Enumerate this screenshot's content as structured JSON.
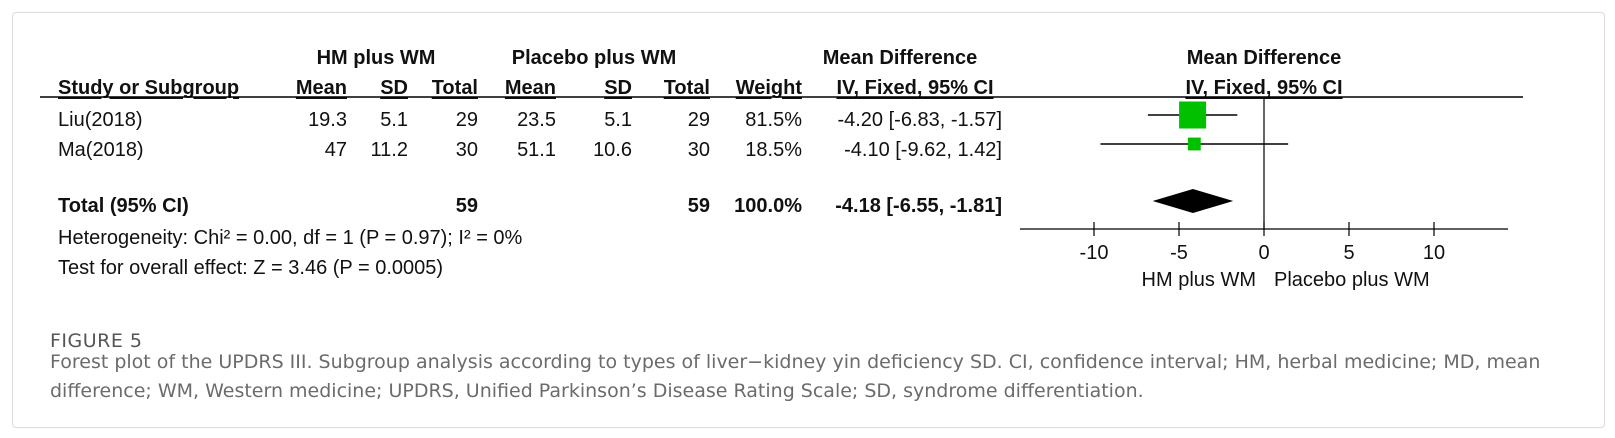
{
  "colors": {
    "marker": "#00c000",
    "diamond": "#000000",
    "line": "#000000",
    "caption": "#6b6b6b"
  },
  "header": {
    "group1": "HM plus WM",
    "group2": "Placebo plus WM",
    "md_col": "Mean Difference",
    "md_plot": "Mean Difference",
    "study_col": "Study or Subgroup",
    "mean": "Mean",
    "sd": "SD",
    "total": "Total",
    "weight": "Weight",
    "method": "IV, Fixed, 95% CI",
    "method_plot": "IV, Fixed, 95% CI"
  },
  "studies": [
    {
      "name": "Liu(2018)",
      "mean1": "19.3",
      "sd1": "5.1",
      "n1": "29",
      "mean2": "23.5",
      "sd2": "5.1",
      "n2": "29",
      "weight": "81.5%",
      "ci_text": "-4.20 [-6.83, -1.57]"
    },
    {
      "name": "Ma(2018)",
      "mean1": "47",
      "sd1": "11.2",
      "n1": "30",
      "mean2": "51.1",
      "sd2": "10.6",
      "n2": "30",
      "weight": "18.5%",
      "ci_text": "-4.10 [-9.62, 1.42]"
    }
  ],
  "total_row": {
    "label": "Total (95% CI)",
    "n1": "59",
    "n2": "59",
    "weight": "100.0%",
    "ci_text": "-4.18 [-6.55, -1.81]"
  },
  "heterogeneity": "Heterogeneity: Chi² = 0.00, df = 1 (P = 0.97); I² = 0%",
  "overall_effect": "Test for overall effect: Z = 3.46 (P = 0.0005)",
  "axis": {
    "left_label": "HM plus WM",
    "right_label": "Placebo plus WM"
  },
  "caption": {
    "label": "FIGURE 5",
    "text": "Forest plot of the UPDRS III. Subgroup analysis according to types of liver−kidney yin deficiency SD. CI, confidence interval; HM, herbal medicine; MD, mean difference; WM, Western medicine; UPDRS, Unified Parkinson’s Disease Rating Scale; SD, syndrome differentiation."
  },
  "chart_data": {
    "type": "forest",
    "xlim": [
      -10,
      10
    ],
    "ticks": [
      -10,
      -5,
      0,
      5,
      10
    ],
    "tick_labels": [
      "-10",
      "-5",
      "0",
      "5",
      "10"
    ],
    "studies": [
      {
        "name": "Liu(2018)",
        "md": -4.2,
        "lower": -6.83,
        "upper": -1.57,
        "weight": 81.5
      },
      {
        "name": "Ma(2018)",
        "md": -4.1,
        "lower": -9.62,
        "upper": 1.42,
        "weight": 18.5
      }
    ],
    "pooled": {
      "md": -4.18,
      "lower": -6.55,
      "upper": -1.81
    }
  }
}
